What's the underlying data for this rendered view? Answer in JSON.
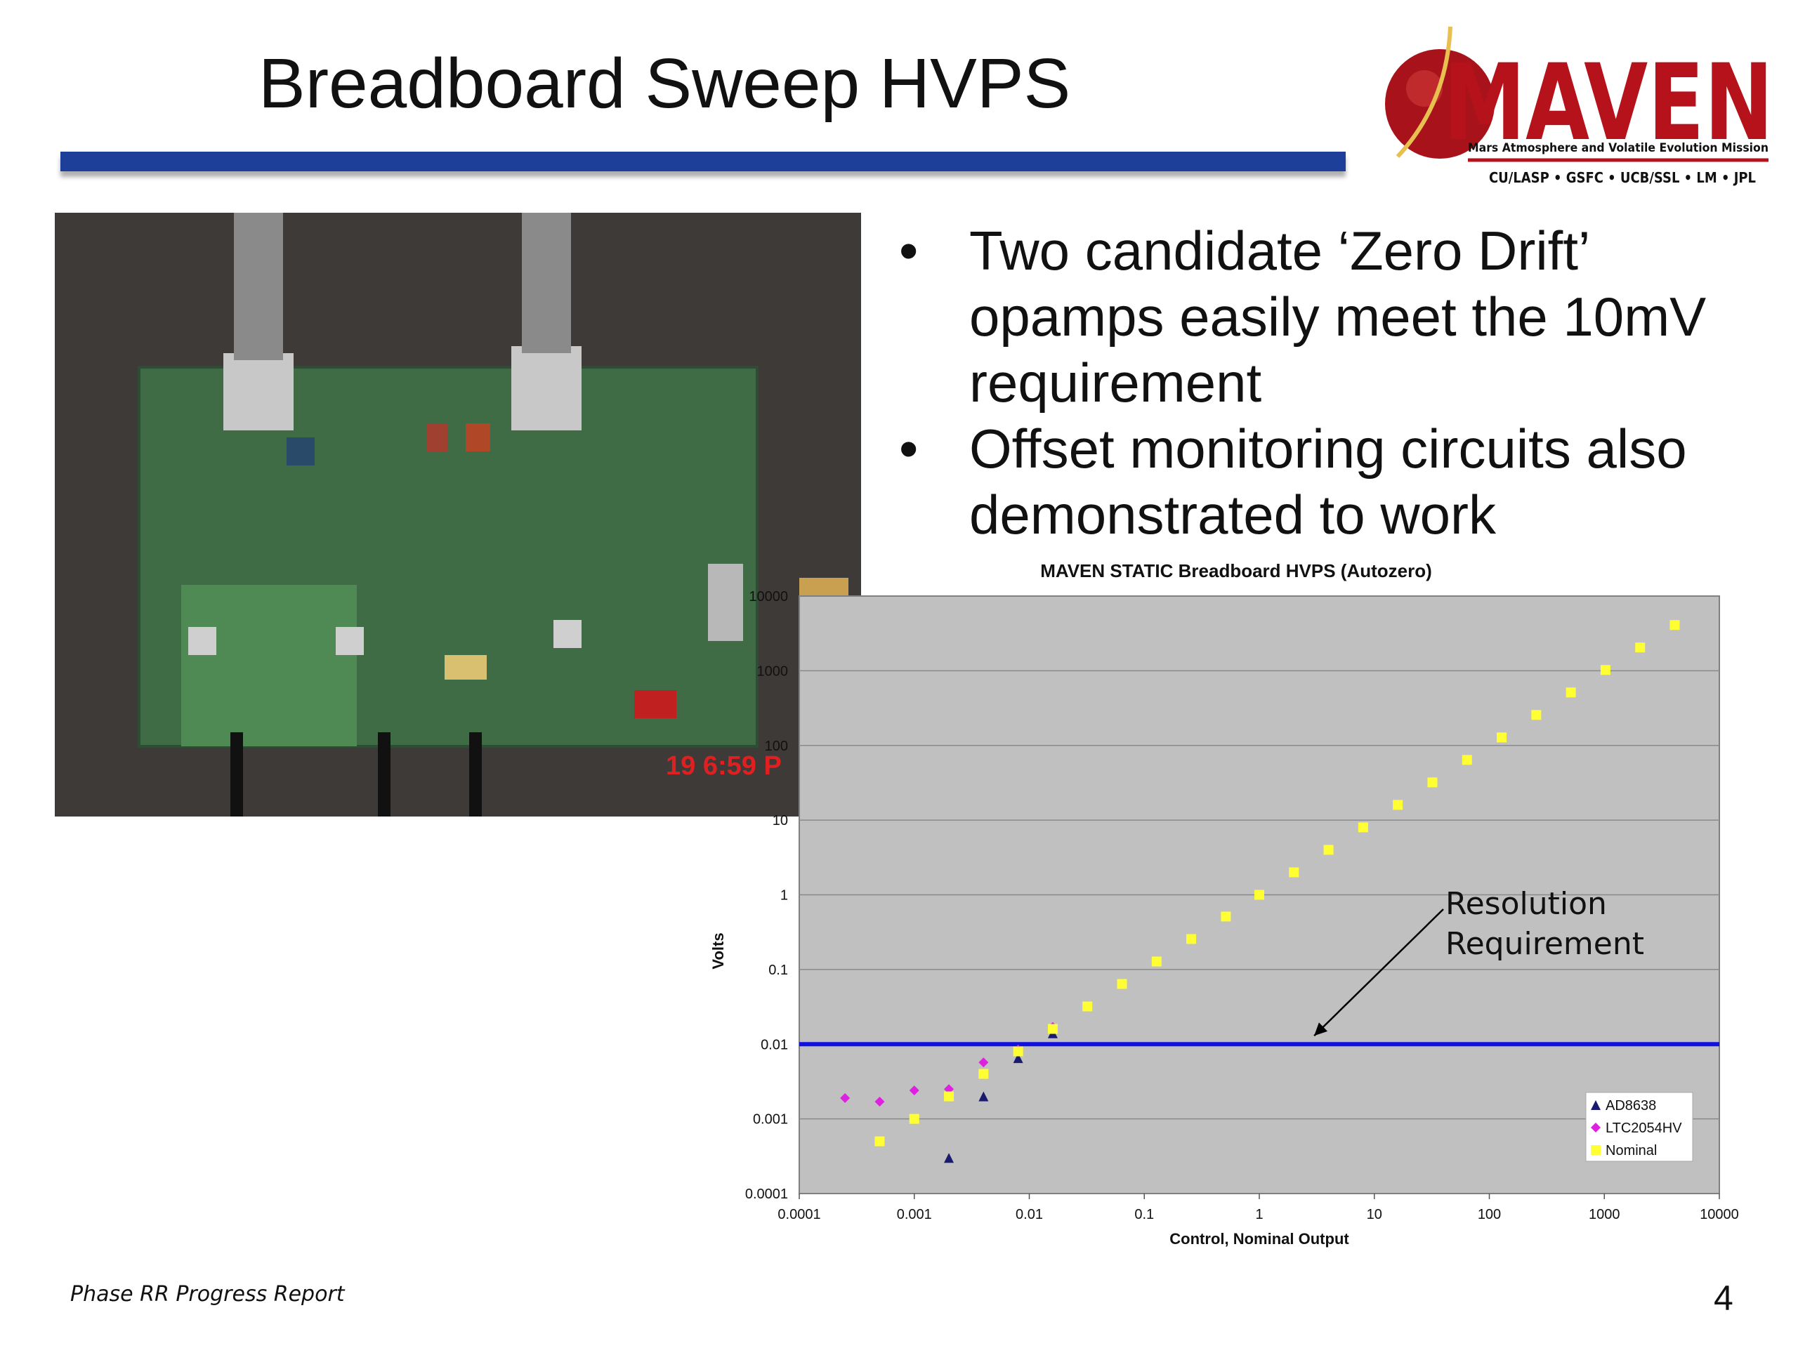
{
  "slide": {
    "title": "Breadboard Sweep HVPS",
    "footer": "Phase RR Progress Report",
    "page_number": "4"
  },
  "logo": {
    "name": "MAVEN",
    "subtitle": "Mars Atmosphere and Volatile Evolution Mission",
    "partners": "CU/LASP • GSFC • UCB/SSL • LM • JPL"
  },
  "photo": {
    "timestamp": "19  6:59 P"
  },
  "bullets": [
    "Two candidate ‘Zero Drift’ opamps easily meet the 10mV requirement",
    "Offset monitoring circuits also demonstrated to work"
  ],
  "bullet_symbol": "•",
  "chart_data": {
    "type": "scatter",
    "title": "MAVEN STATIC Breadboard HVPS (Autozero)",
    "xlabel": "Control, Nominal Output",
    "ylabel": "Volts",
    "xscale": "log",
    "yscale": "log",
    "xlim": [
      0.0001,
      10000
    ],
    "ylim": [
      0.0001,
      10000
    ],
    "x_tick_labels": [
      "0.0001",
      "0.001",
      "0.01",
      "0.1",
      "1",
      "10",
      "100",
      "1000",
      "10000"
    ],
    "y_tick_labels": [
      "0.0001",
      "0.001",
      "0.01",
      "0.1",
      "1",
      "10",
      "100",
      "1000",
      "10000"
    ],
    "grid": "horizontal",
    "legend_position": "bottom-right",
    "reference_line": {
      "y": 0.01,
      "color": "#1010e0"
    },
    "annotation": {
      "lines": [
        "Resolution",
        "Requirement"
      ],
      "target_x": 3,
      "target_y": 0.01
    },
    "series": [
      {
        "name": "AD8638",
        "marker": "triangle",
        "color": "#1a1a6e",
        "points": [
          [
            0.002,
            0.0003
          ],
          [
            0.004,
            0.002
          ],
          [
            0.008,
            0.0065
          ],
          [
            0.016,
            0.014
          ]
        ]
      },
      {
        "name": "LTC2054HV",
        "marker": "diamond",
        "color": "#e020e0",
        "points": [
          [
            0.00025,
            0.0019
          ],
          [
            0.0005,
            0.0017
          ],
          [
            0.001,
            0.0024
          ],
          [
            0.002,
            0.0025
          ],
          [
            0.004,
            0.0057
          ],
          [
            0.008,
            0.0085
          ],
          [
            0.016,
            0.017
          ]
        ]
      },
      {
        "name": "Nominal",
        "marker": "square",
        "color": "#ffff33",
        "points": [
          [
            0.0005,
            0.0005
          ],
          [
            0.001,
            0.001
          ],
          [
            0.002,
            0.002
          ],
          [
            0.004,
            0.004
          ],
          [
            0.008,
            0.008
          ],
          [
            0.016,
            0.016
          ],
          [
            0.032,
            0.032
          ],
          [
            0.064,
            0.064
          ],
          [
            0.128,
            0.128
          ],
          [
            0.256,
            0.256
          ],
          [
            0.512,
            0.512
          ],
          [
            1,
            1
          ],
          [
            2,
            2
          ],
          [
            4,
            4
          ],
          [
            8,
            8
          ],
          [
            16,
            16
          ],
          [
            32,
            32
          ],
          [
            64,
            64
          ],
          [
            128,
            128
          ],
          [
            256,
            256
          ],
          [
            512,
            512
          ],
          [
            1024,
            1024
          ],
          [
            2048,
            2048
          ],
          [
            4096,
            4096
          ]
        ]
      }
    ]
  }
}
